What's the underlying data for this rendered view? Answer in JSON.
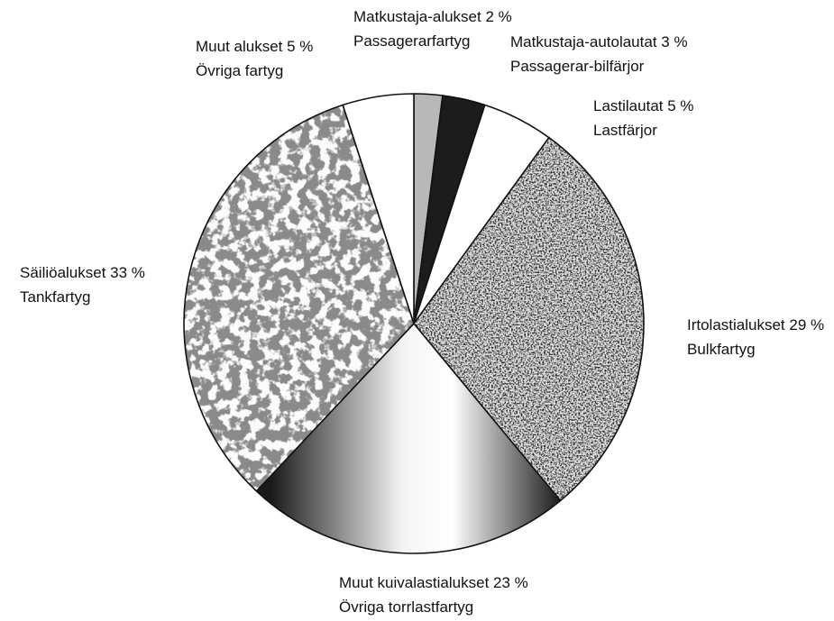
{
  "chart_data": {
    "type": "pie",
    "title": "",
    "slices": [
      {
        "line1": "Matkustaja-alukset 2 %",
        "line2": "Passagerarfartyg",
        "value": 2,
        "fill": "#b8b8b8",
        "pattern": "solid"
      },
      {
        "line1": "Matkustaja-autolautat 3 %",
        "line2": "Passagerar-bilfärjor",
        "value": 3,
        "fill": "#1c1c1c",
        "pattern": "solid"
      },
      {
        "line1": "Lastilautat 5 %",
        "line2": "Lastfärjor",
        "value": 5,
        "fill": "#ffffff",
        "pattern": "solid"
      },
      {
        "line1": "Irtolastialukset 29 %",
        "line2": "Bulkfartyg",
        "value": 29,
        "fill": "#7a7a7a",
        "pattern": "speckled"
      },
      {
        "line1": "Muut kuivalastialukset 23 %",
        "line2": "Övriga torrlastfartyg",
        "value": 23,
        "fill": "#9a9a9a",
        "pattern": "gradient"
      },
      {
        "line1": "Säiliöalukset 33 %",
        "line2": "Tankfartyg",
        "value": 33,
        "fill": "#f8f8f8",
        "pattern": "light-speckle"
      },
      {
        "line1": "Muut alukset 5 %",
        "line2": "Övriga fartyg",
        "value": 5,
        "fill": "#ffffff",
        "pattern": "solid"
      }
    ],
    "start": "12 o'clock, clockwise",
    "legend": "none (direct labels)"
  }
}
